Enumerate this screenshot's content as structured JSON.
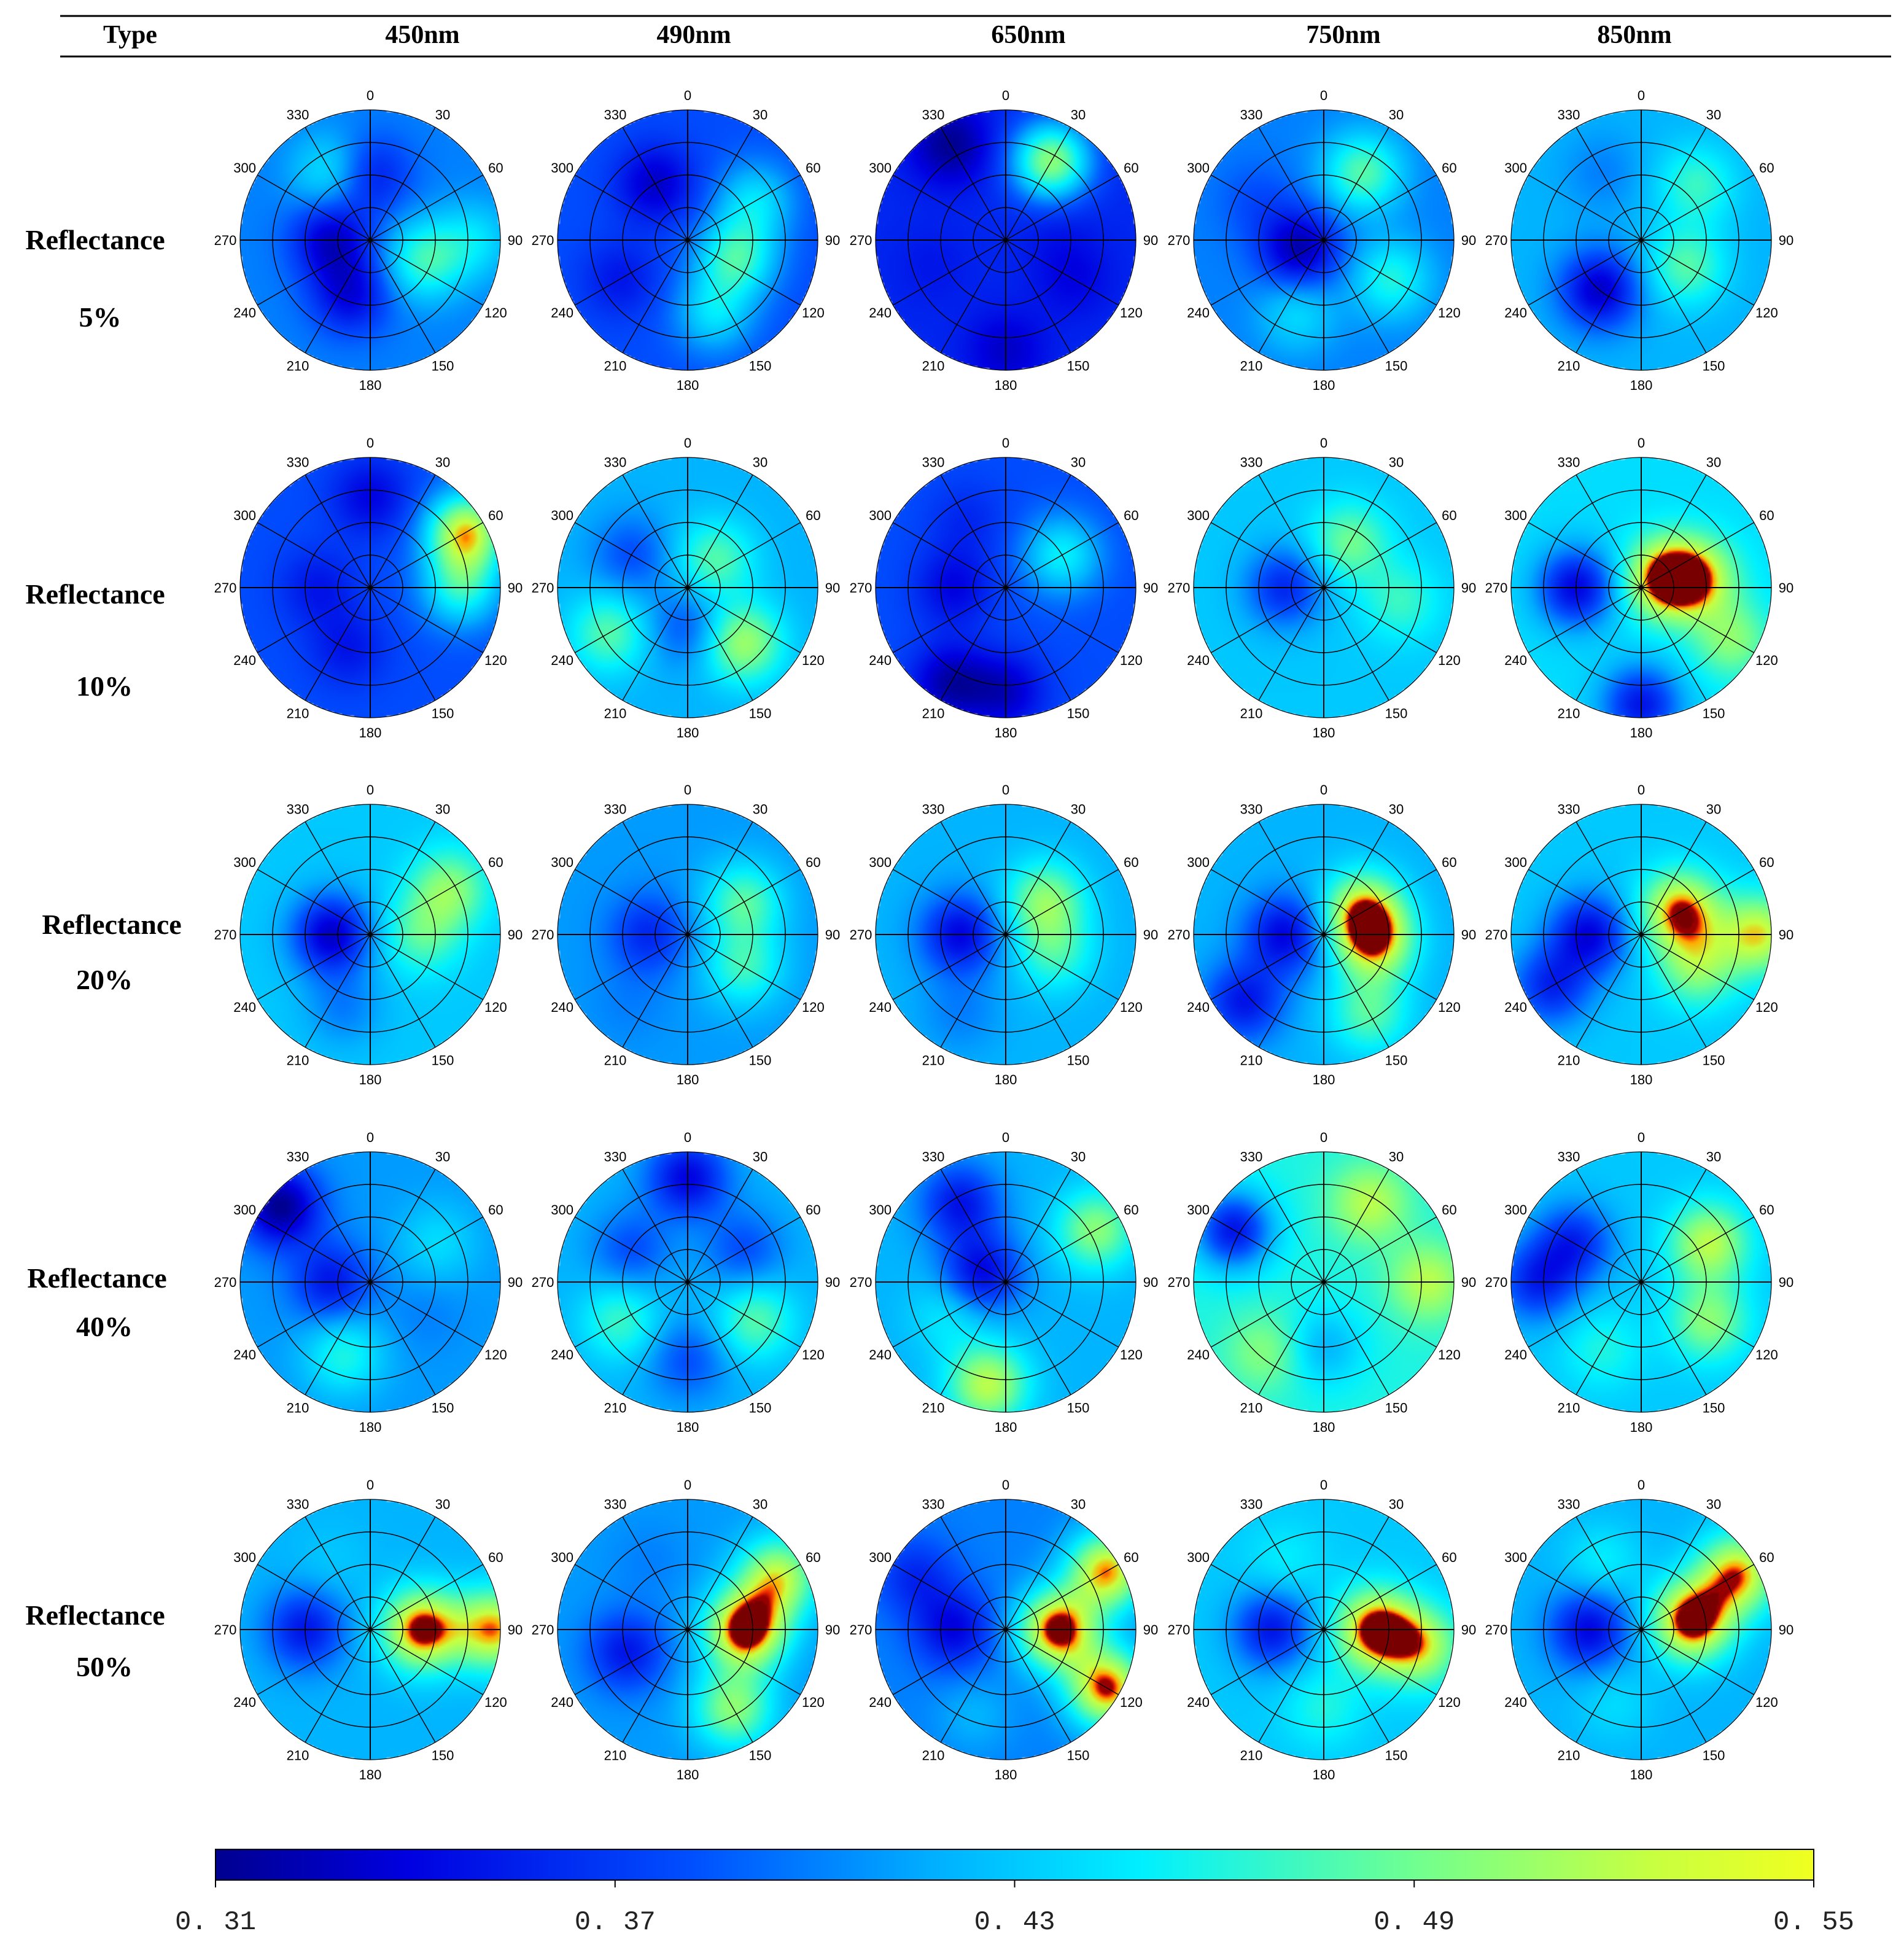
{
  "chart_data": {
    "type": "heatmap",
    "subtype": "polar-grid",
    "column_header_label": "Type",
    "columns": [
      "450nm",
      "490nm",
      "650nm",
      "750nm",
      "850nm"
    ],
    "rows": [
      {
        "label": "Reflectance",
        "sublabel": "5%"
      },
      {
        "label": "Reflectance",
        "sublabel": "10%"
      },
      {
        "label": "Reflectance",
        "sublabel": "20%"
      },
      {
        "label": "Reflectance",
        "sublabel": "40%"
      },
      {
        "label": "Reflectance",
        "sublabel": "50%"
      }
    ],
    "angle_labels": [
      "0",
      "30",
      "60",
      "90",
      "120",
      "150",
      "180",
      "210",
      "240",
      "270",
      "300",
      "330"
    ],
    "colorbar": {
      "min": 0.31,
      "max": 0.55,
      "tick_labels": [
        "0. 31",
        "0. 37",
        "0. 43",
        "0. 49",
        "0. 55"
      ],
      "tick_values": [
        0.31,
        0.37,
        0.43,
        0.49,
        0.55
      ],
      "colormap": "jet"
    },
    "hotspot_note": "approximate dominant features per panel: angle in degrees, radius fraction, value",
    "panels": [
      [
        {
          "base": 0.4,
          "features": [
            [
              0,
              0.5,
              0.35
            ],
            [
              200,
              0.45,
              0.34
            ],
            [
              270,
              0.3,
              0.33
            ],
            [
              330,
              0.6,
              0.45
            ],
            [
              110,
              0.45,
              0.47
            ],
            [
              90,
              0.8,
              0.44
            ]
          ]
        },
        {
          "base": 0.38,
          "features": [
            [
              330,
              0.5,
              0.33
            ],
            [
              60,
              0.6,
              0.44
            ],
            [
              110,
              0.4,
              0.47
            ],
            [
              160,
              0.6,
              0.44
            ],
            [
              240,
              0.6,
              0.35
            ]
          ]
        },
        {
          "base": 0.36,
          "features": [
            [
              30,
              0.7,
              0.5
            ],
            [
              80,
              0.4,
              0.35
            ],
            [
              120,
              0.6,
              0.34
            ],
            [
              250,
              0.6,
              0.35
            ],
            [
              330,
              0.85,
              0.31
            ],
            [
              180,
              0.85,
              0.33
            ]
          ]
        },
        {
          "base": 0.4,
          "features": [
            [
              250,
              0.2,
              0.32
            ],
            [
              30,
              0.6,
              0.48
            ],
            [
              120,
              0.6,
              0.46
            ],
            [
              200,
              0.6,
              0.44
            ],
            [
              300,
              0.6,
              0.38
            ]
          ]
        },
        {
          "base": 0.42,
          "features": [
            [
              220,
              0.5,
              0.33
            ],
            [
              45,
              0.6,
              0.47
            ],
            [
              120,
              0.4,
              0.48
            ],
            [
              330,
              0.6,
              0.4
            ]
          ]
        }
      ],
      [
        {
          "base": 0.38,
          "features": [
            [
              60,
              0.85,
              0.53
            ],
            [
              90,
              0.7,
              0.46
            ],
            [
              200,
              0.5,
              0.35
            ],
            [
              270,
              0.4,
              0.35
            ],
            [
              0,
              0.7,
              0.34
            ]
          ]
        },
        {
          "base": 0.42,
          "features": [
            [
              45,
              0.3,
              0.48
            ],
            [
              135,
              0.6,
              0.51
            ],
            [
              240,
              0.7,
              0.48
            ],
            [
              300,
              0.5,
              0.38
            ],
            [
              180,
              0.3,
              0.38
            ]
          ]
        },
        {
          "base": 0.38,
          "features": [
            [
              60,
              0.5,
              0.45
            ],
            [
              270,
              0.4,
              0.34
            ],
            [
              210,
              0.85,
              0.32
            ],
            [
              180,
              0.8,
              0.33
            ],
            [
              330,
              0.6,
              0.36
            ]
          ]
        },
        {
          "base": 0.43,
          "features": [
            [
              270,
              0.3,
              0.36
            ],
            [
              30,
              0.4,
              0.49
            ],
            [
              100,
              0.6,
              0.47
            ],
            [
              300,
              0.7,
              0.43
            ]
          ]
        },
        {
          "base": 0.44,
          "features": [
            [
              70,
              0.2,
              0.56
            ],
            [
              80,
              0.45,
              0.52
            ],
            [
              270,
              0.5,
              0.34
            ],
            [
              180,
              0.9,
              0.35
            ],
            [
              120,
              0.8,
              0.5
            ]
          ]
        }
      ],
      [
        {
          "base": 0.43,
          "features": [
            [
              270,
              0.3,
              0.33
            ],
            [
              60,
              0.7,
              0.5
            ],
            [
              90,
              0.4,
              0.48
            ],
            [
              200,
              0.6,
              0.4
            ]
          ]
        },
        {
          "base": 0.41,
          "features": [
            [
              270,
              0.3,
              0.36
            ],
            [
              60,
              0.5,
              0.48
            ],
            [
              120,
              0.5,
              0.47
            ],
            [
              220,
              0.7,
              0.4
            ]
          ]
        },
        {
          "base": 0.42,
          "features": [
            [
              270,
              0.35,
              0.34
            ],
            [
              50,
              0.4,
              0.5
            ],
            [
              110,
              0.4,
              0.47
            ],
            [
              210,
              0.7,
              0.4
            ]
          ]
        },
        {
          "base": 0.42,
          "features": [
            [
              60,
              0.35,
              0.53
            ],
            [
              100,
              0.4,
              0.52
            ],
            [
              270,
              0.3,
              0.34
            ],
            [
              230,
              0.8,
              0.35
            ],
            [
              150,
              0.7,
              0.48
            ]
          ]
        },
        {
          "base": 0.43,
          "features": [
            [
              60,
              0.35,
              0.55
            ],
            [
              90,
              0.9,
              0.53
            ],
            [
              120,
              0.5,
              0.5
            ],
            [
              270,
              0.4,
              0.34
            ],
            [
              240,
              0.8,
              0.36
            ]
          ]
        }
      ],
      [
        {
          "base": 0.41,
          "features": [
            [
              310,
              0.9,
              0.31
            ],
            [
              270,
              0.3,
              0.35
            ],
            [
              120,
              0.5,
              0.4
            ],
            [
              60,
              0.6,
              0.44
            ],
            [
              200,
              0.6,
              0.46
            ]
          ]
        },
        {
          "base": 0.42,
          "features": [
            [
              0,
              0.8,
              0.34
            ],
            [
              60,
              0.5,
              0.38
            ],
            [
              300,
              0.5,
              0.38
            ],
            [
              240,
              0.6,
              0.47
            ],
            [
              120,
              0.6,
              0.48
            ],
            [
              180,
              0.6,
              0.38
            ]
          ]
        },
        {
          "base": 0.42,
          "features": [
            [
              290,
              0.2,
              0.34
            ],
            [
              330,
              0.7,
              0.35
            ],
            [
              60,
              0.8,
              0.5
            ],
            [
              190,
              0.8,
              0.52
            ],
            [
              240,
              0.5,
              0.45
            ]
          ]
        },
        {
          "base": 0.46,
          "features": [
            [
              300,
              0.8,
              0.35
            ],
            [
              30,
              0.7,
              0.52
            ],
            [
              90,
              0.8,
              0.52
            ],
            [
              220,
              0.7,
              0.5
            ],
            [
              180,
              0.5,
              0.42
            ]
          ]
        },
        {
          "base": 0.43,
          "features": [
            [
              300,
              0.6,
              0.36
            ],
            [
              60,
              0.6,
              0.52
            ],
            [
              120,
              0.6,
              0.5
            ],
            [
              270,
              0.8,
              0.36
            ],
            [
              210,
              0.6,
              0.46
            ]
          ]
        }
      ],
      [
        {
          "base": 0.42,
          "features": [
            [
              90,
              0.4,
              0.56
            ],
            [
              90,
              0.95,
              0.54
            ],
            [
              270,
              0.5,
              0.35
            ],
            [
              180,
              0.6,
              0.42
            ],
            [
              330,
              0.6,
              0.43
            ]
          ]
        },
        {
          "base": 0.41,
          "features": [
            [
              90,
              0.45,
              0.57
            ],
            [
              60,
              0.8,
              0.52
            ],
            [
              250,
              0.5,
              0.35
            ],
            [
              150,
              0.7,
              0.5
            ],
            [
              330,
              0.6,
              0.4
            ]
          ]
        },
        {
          "base": 0.4,
          "features": [
            [
              90,
              0.4,
              0.56
            ],
            [
              60,
              0.9,
              0.54
            ],
            [
              120,
              0.9,
              0.55
            ],
            [
              270,
              0.4,
              0.34
            ],
            [
              300,
              0.8,
              0.36
            ],
            [
              200,
              0.7,
              0.42
            ]
          ]
        },
        {
          "base": 0.43,
          "features": [
            [
              90,
              0.4,
              0.56
            ],
            [
              100,
              0.75,
              0.52
            ],
            [
              270,
              0.4,
              0.35
            ],
            [
              180,
              0.6,
              0.46
            ],
            [
              330,
              0.6,
              0.45
            ]
          ]
        },
        {
          "base": 0.42,
          "features": [
            [
              80,
              0.4,
              0.57
            ],
            [
              60,
              0.85,
              0.54
            ],
            [
              270,
              0.4,
              0.34
            ],
            [
              200,
              0.6,
              0.44
            ],
            [
              330,
              0.6,
              0.45
            ]
          ]
        }
      ]
    ]
  }
}
